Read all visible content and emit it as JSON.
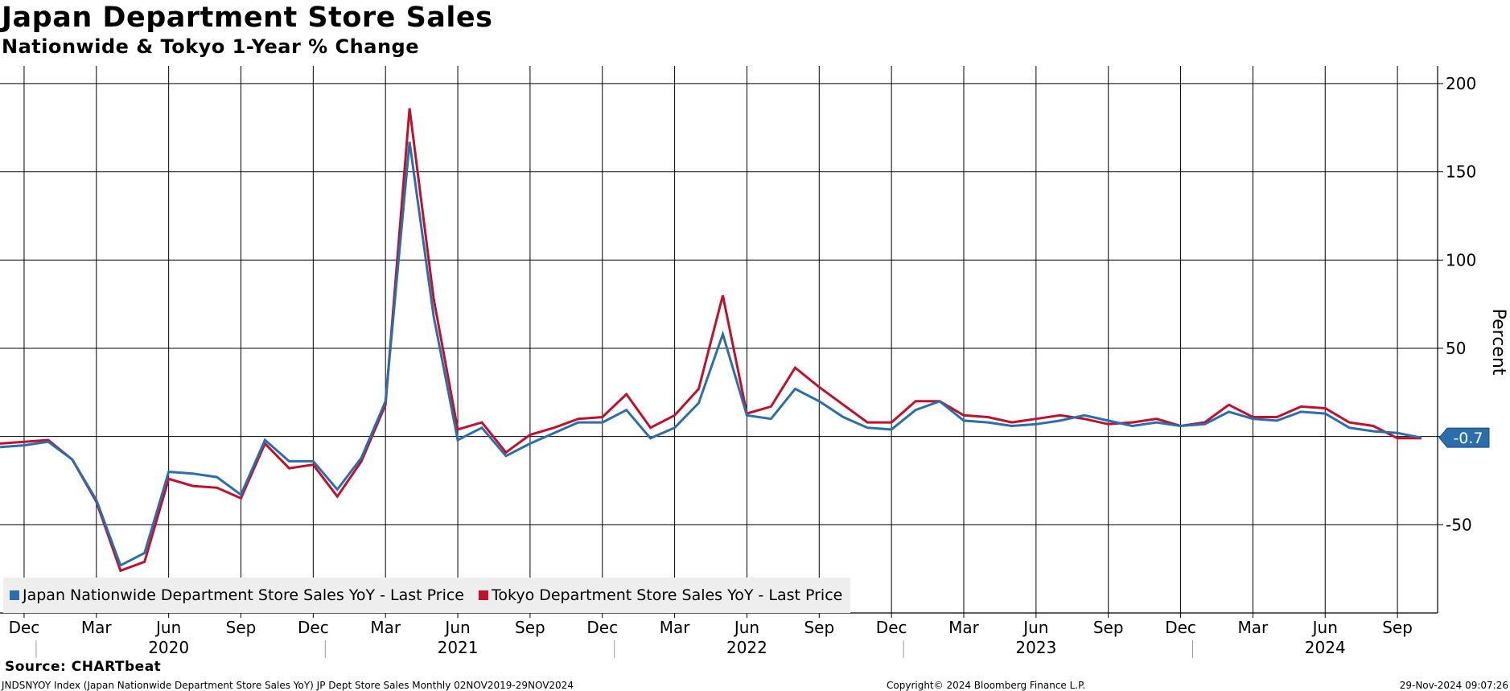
{
  "header": {
    "title": "Japan Department Store Sales",
    "subtitle": "Nationwide & Tokyo 1-Year % Change"
  },
  "footer": {
    "source": "Source: CHARTbeat",
    "index_info": "JNDSNYOY Index (Japan Nationwide Department Store Sales YoY) JP Dept Store Sales  Monthly 02NOV2019-29NOV2024",
    "copyright": "Copyright© 2024 Bloomberg Finance L.P.",
    "timestamp": "29-Nov-2024 09:07:26"
  },
  "colors": {
    "nationwide": "#2a6ead",
    "tokyo": "#c0102c",
    "last_value_badge": "#2a6ead"
  },
  "chart_data": {
    "type": "line",
    "title": "Japan Department Store Sales",
    "subtitle": "Nationwide & Tokyo 1-Year % Change",
    "ylabel": "Percent",
    "ylim": [
      -100,
      210
    ],
    "yticks": [
      200,
      150,
      100,
      50,
      0,
      -50
    ],
    "ytick_labels": [
      "200",
      "150",
      "100",
      "50",
      "",
      "-50"
    ],
    "y_axis_side": "right",
    "grid": true,
    "legend_position": "bottom-left",
    "x": [
      "2019-11",
      "2019-12",
      "2020-01",
      "2020-02",
      "2020-03",
      "2020-04",
      "2020-05",
      "2020-06",
      "2020-07",
      "2020-08",
      "2020-09",
      "2020-10",
      "2020-11",
      "2020-12",
      "2021-01",
      "2021-02",
      "2021-03",
      "2021-04",
      "2021-05",
      "2021-06",
      "2021-07",
      "2021-08",
      "2021-09",
      "2021-10",
      "2021-11",
      "2021-12",
      "2022-01",
      "2022-02",
      "2022-03",
      "2022-04",
      "2022-05",
      "2022-06",
      "2022-07",
      "2022-08",
      "2022-09",
      "2022-10",
      "2022-11",
      "2022-12",
      "2023-01",
      "2023-02",
      "2023-03",
      "2023-04",
      "2023-05",
      "2023-06",
      "2023-07",
      "2023-08",
      "2023-09",
      "2023-10",
      "2023-11",
      "2023-12",
      "2024-01",
      "2024-02",
      "2024-03",
      "2024-04",
      "2024-05",
      "2024-06",
      "2024-07",
      "2024-08",
      "2024-09",
      "2024-10"
    ],
    "x_month_labels": [
      "Dec",
      "Mar",
      "Jun",
      "Sep",
      "Dec",
      "Mar",
      "Jun",
      "Sep",
      "Dec",
      "Mar",
      "Jun",
      "Sep",
      "Dec",
      "Mar",
      "Jun",
      "Sep",
      "Dec",
      "Mar",
      "Jun",
      "Sep"
    ],
    "x_month_label_index": [
      1,
      4,
      7,
      10,
      13,
      16,
      19,
      22,
      25,
      28,
      31,
      34,
      37,
      40,
      43,
      46,
      49,
      52,
      55,
      58
    ],
    "x_year_labels": [
      "2020",
      "2021",
      "2022",
      "2023",
      "2024"
    ],
    "x_year_label_index": [
      7,
      19,
      31,
      43,
      55
    ],
    "series": [
      {
        "name": "Japan Nationwide Department Store Sales YoY - Last Price",
        "values": [
          -6,
          -5,
          -3,
          -13,
          -36,
          -73,
          -66,
          -20,
          -21,
          -23,
          -33,
          -2,
          -14,
          -14,
          -30,
          -12,
          20,
          167,
          68,
          -2,
          5,
          -11,
          -4,
          2,
          8,
          8,
          15,
          -1,
          5,
          19,
          58,
          12,
          10,
          27,
          20,
          11,
          5,
          4,
          15,
          20,
          9,
          8,
          6,
          7,
          9,
          12,
          9,
          6,
          8,
          6,
          7,
          14,
          10,
          9,
          14,
          13,
          5,
          3,
          2,
          -0.7
        ],
        "last_value": "-0.7"
      },
      {
        "name": "Tokyo Department Store Sales YoY - Last Price",
        "values": [
          -4,
          -3,
          -2,
          -13,
          -37,
          -76,
          -71,
          -24,
          -28,
          -29,
          -35,
          -4,
          -18,
          -16,
          -34,
          -14,
          18,
          186,
          78,
          4,
          8,
          -9,
          1,
          5,
          10,
          11,
          24,
          5,
          12,
          27,
          80,
          13,
          17,
          39,
          28,
          18,
          8,
          8,
          20,
          20,
          12,
          11,
          8,
          10,
          12,
          10,
          7,
          8,
          10,
          6,
          8,
          18,
          11,
          11,
          17,
          16,
          8,
          6,
          -1,
          -1
        ]
      }
    ]
  }
}
